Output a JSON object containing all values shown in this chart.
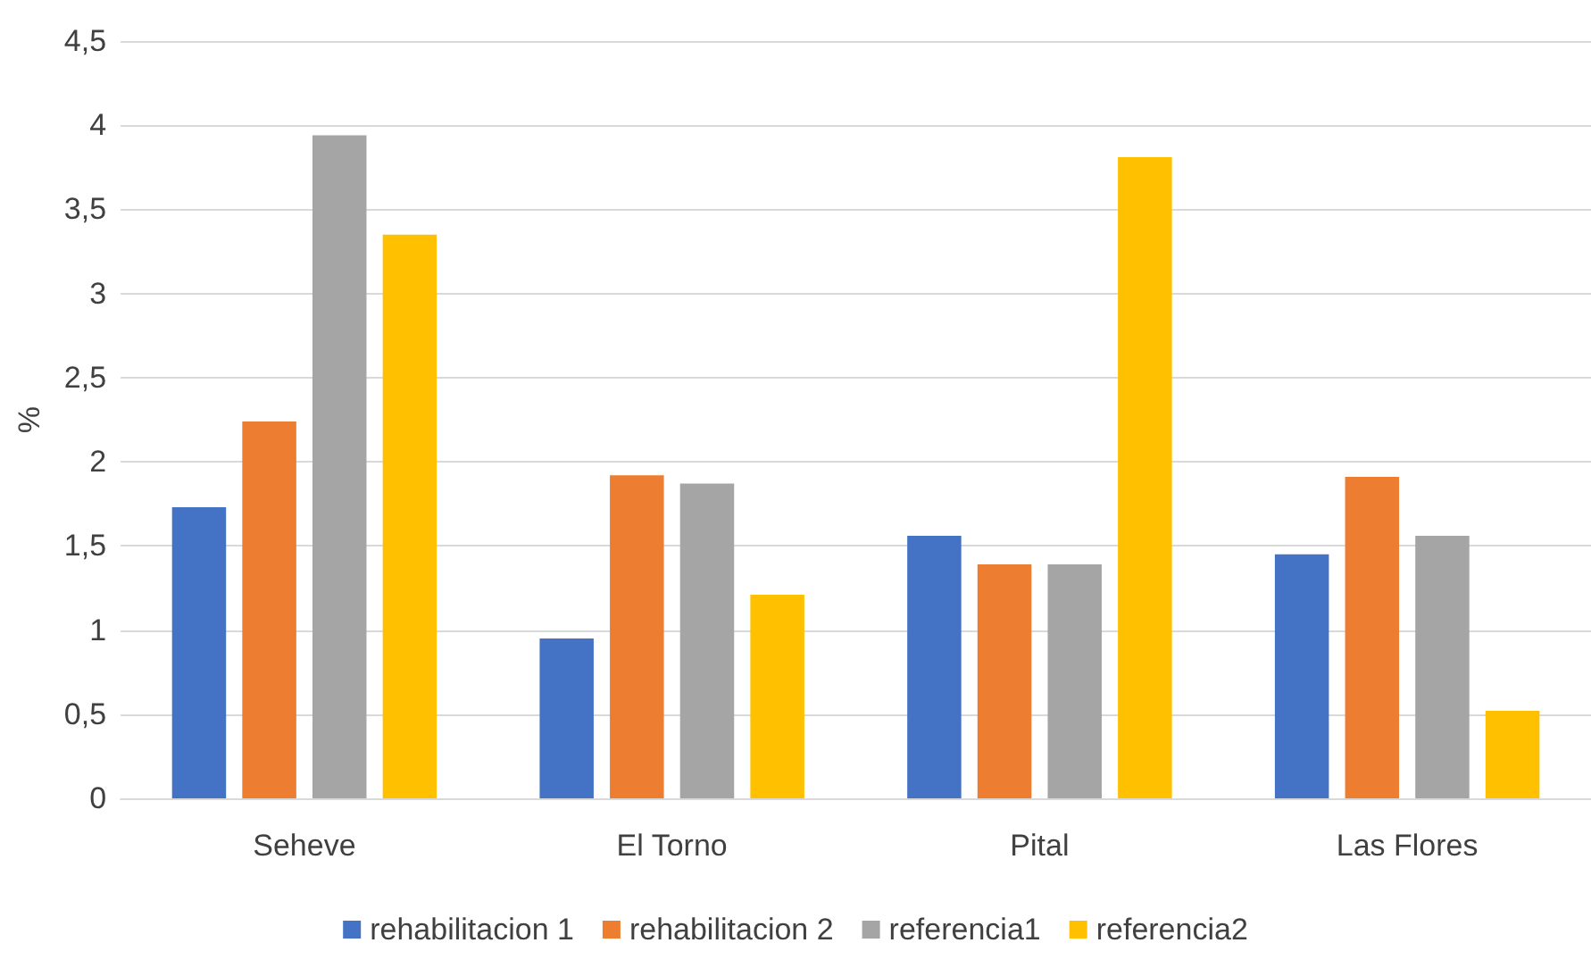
{
  "chart_data": {
    "type": "bar",
    "ylabel": "%",
    "categories": [
      "Seheve",
      "El Torno",
      "Pital",
      "Las Flores"
    ],
    "series": [
      {
        "name": "rehabilitacion 1",
        "color": "#4472c4",
        "values": [
          1.73,
          0.95,
          1.56,
          1.45
        ]
      },
      {
        "name": "rehabilitacion 2",
        "color": "#ed7d31",
        "values": [
          2.24,
          1.92,
          1.39,
          1.91
        ]
      },
      {
        "name": "referencia1",
        "color": "#a5a5a5",
        "values": [
          3.94,
          1.87,
          1.39,
          1.56
        ]
      },
      {
        "name": "referencia2",
        "color": "#ffc000",
        "values": [
          3.35,
          1.21,
          3.81,
          0.52
        ]
      }
    ],
    "ylim": [
      0,
      4.5
    ],
    "yticks": [
      0,
      {
        "value": 0.5,
        "label": "0,5"
      },
      1,
      {
        "value": 1.5,
        "label": "1,5"
      },
      2,
      {
        "value": 2.5,
        "label": "2,5"
      },
      3,
      {
        "value": 3.5,
        "label": "3,5"
      },
      4,
      {
        "value": 4.5,
        "label": "4,5"
      }
    ],
    "grid": "y",
    "legend": "bottom"
  }
}
